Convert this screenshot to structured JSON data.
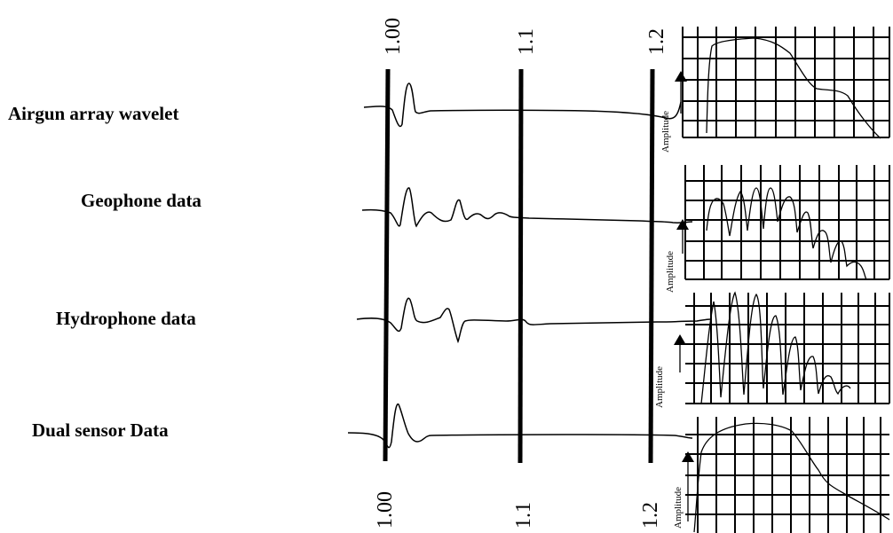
{
  "rows": [
    {
      "label": "Airgun array wavelet"
    },
    {
      "label": "Geophone data"
    },
    {
      "label": "Hydrophone data"
    },
    {
      "label": "Dual sensor Data"
    }
  ],
  "time_ticks": {
    "top": [
      "1.00",
      "1.1",
      "1.2"
    ],
    "bottom": [
      "1.00",
      "1.1",
      "1.2"
    ]
  },
  "spectrum_axis_label": "Amplitude"
}
